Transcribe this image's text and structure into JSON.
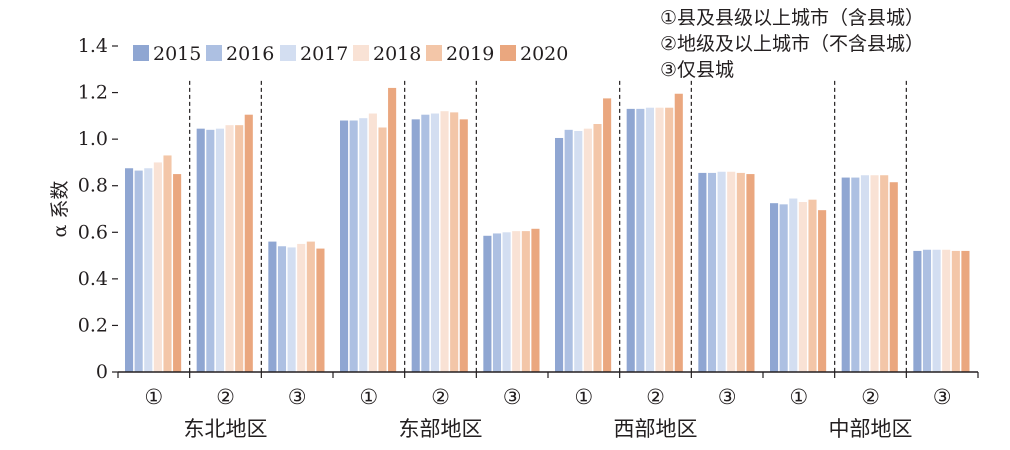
{
  "chart_data": {
    "type": "bar",
    "ylabel": "α 系数",
    "ylim": [
      0,
      1.4
    ],
    "yticks": [
      "0",
      "0.2",
      "0.4",
      "0.6",
      "0.8",
      "1.0",
      "1.2",
      "1.4"
    ],
    "legend_position": "top-left",
    "notes": [
      "①县及县级以上城市（含县城）",
      "②地级及以上城市（不含县城）",
      "③仅县城"
    ],
    "regions": [
      "东北地区",
      "东部地区",
      "西部地区",
      "中部地区"
    ],
    "subcategories": [
      "①",
      "②",
      "③"
    ],
    "categories": [
      "东北地区①",
      "东北地区②",
      "东北地区③",
      "东部地区①",
      "东部地区②",
      "东部地区③",
      "西部地区①",
      "西部地区②",
      "西部地区③",
      "中部地区①",
      "中部地区②",
      "中部地区③"
    ],
    "series": [
      {
        "name": "2015",
        "color": "#8fa6d2",
        "values": [
          0.875,
          1.045,
          0.56,
          1.08,
          1.085,
          0.585,
          1.005,
          1.13,
          0.855,
          0.725,
          0.835,
          0.52
        ]
      },
      {
        "name": "2016",
        "color": "#adc0e2",
        "values": [
          0.865,
          1.04,
          0.54,
          1.08,
          1.105,
          0.595,
          1.04,
          1.13,
          0.855,
          0.72,
          0.835,
          0.525
        ]
      },
      {
        "name": "2017",
        "color": "#d3def1",
        "values": [
          0.875,
          1.045,
          0.535,
          1.09,
          1.11,
          0.6,
          1.035,
          1.135,
          0.86,
          0.745,
          0.845,
          0.525
        ]
      },
      {
        "name": "2018",
        "color": "#f9e2d5",
        "values": [
          0.9,
          1.06,
          0.55,
          1.11,
          1.12,
          0.605,
          1.045,
          1.135,
          0.86,
          0.73,
          0.845,
          0.525
        ]
      },
      {
        "name": "2019",
        "color": "#f3c6a8",
        "values": [
          0.93,
          1.06,
          0.56,
          1.05,
          1.115,
          0.605,
          1.065,
          1.135,
          0.855,
          0.74,
          0.845,
          0.52
        ]
      },
      {
        "name": "2020",
        "color": "#eaa77f",
        "values": [
          0.85,
          1.105,
          0.53,
          1.22,
          1.085,
          0.615,
          1.175,
          1.195,
          0.85,
          0.695,
          0.815,
          0.52
        ]
      }
    ]
  }
}
